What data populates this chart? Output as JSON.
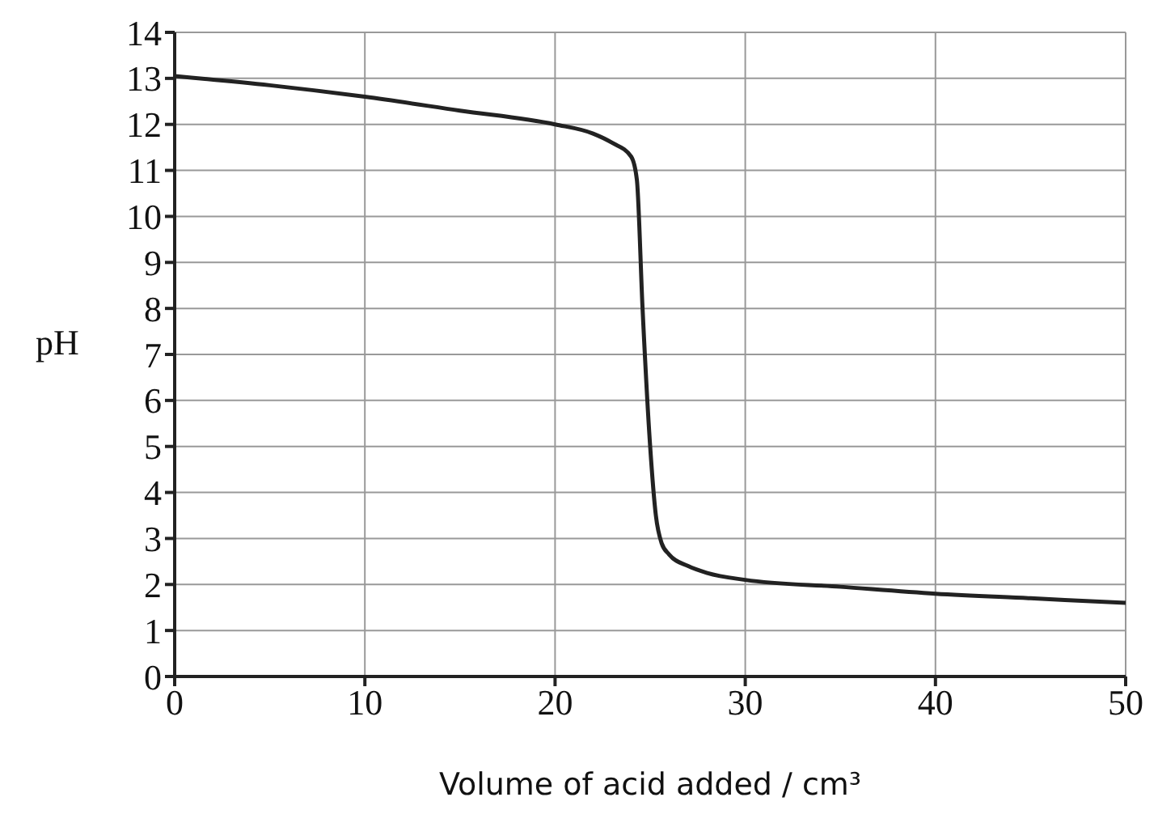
{
  "chart_data": {
    "type": "line",
    "xlabel": "Volume of acid added / cm³",
    "ylabel": "pH",
    "x": [
      0,
      5,
      10,
      15,
      20,
      22,
      23,
      24,
      24.3,
      24.6,
      25,
      25.3,
      25.6,
      26,
      27,
      28,
      30,
      35,
      40,
      45,
      50
    ],
    "series": [
      {
        "color": "#222222",
        "values": [
          13.05,
          12.85,
          12.6,
          12.3,
          12.0,
          11.8,
          11.6,
          11.3,
          10.8,
          8,
          5,
          3.5,
          2.9,
          2.65,
          2.4,
          2.25,
          2.1,
          1.95,
          1.8,
          1.7,
          1.6
        ]
      }
    ],
    "xlim": [
      0,
      50
    ],
    "xticks": [
      0,
      10,
      20,
      30,
      40,
      50
    ],
    "ylim": [
      0,
      14
    ],
    "yticks": [
      0,
      1,
      2,
      3,
      4,
      5,
      6,
      7,
      8,
      9,
      10,
      11,
      12,
      13,
      14
    ],
    "grid": true,
    "legend": false,
    "marker": "none",
    "line_style": "solid"
  }
}
